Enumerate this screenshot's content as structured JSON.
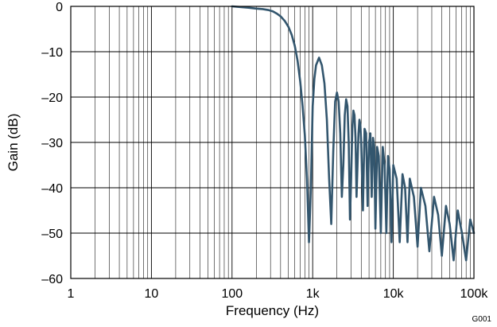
{
  "chart_data": {
    "type": "line",
    "xlabel": "Frequency (Hz)",
    "ylabel": "Gain (dB)",
    "x_scale": "log",
    "xlim": [
      1,
      100000
    ],
    "ylim": [
      -60,
      0
    ],
    "grid": true,
    "x_ticks": [
      {
        "value": 1,
        "label": "1"
      },
      {
        "value": 10,
        "label": "10"
      },
      {
        "value": 100,
        "label": "100"
      },
      {
        "value": 1000,
        "label": "1k"
      },
      {
        "value": 10000,
        "label": "10k"
      },
      {
        "value": 100000,
        "label": "100k"
      }
    ],
    "y_ticks": [
      {
        "value": 0,
        "label": "0"
      },
      {
        "value": -10,
        "label": "–10"
      },
      {
        "value": -20,
        "label": "–20"
      },
      {
        "value": -30,
        "label": "–30"
      },
      {
        "value": -40,
        "label": "–40"
      },
      {
        "value": -50,
        "label": "–50"
      },
      {
        "value": -60,
        "label": "–60"
      }
    ],
    "series_color": "#33566e",
    "series": [
      {
        "x": [
          100,
          160,
          200,
          240,
          280,
          320,
          360,
          400,
          450,
          500,
          550,
          600,
          650,
          700,
          750,
          800,
          850,
          900,
          950,
          1000,
          1050,
          1100,
          1200,
          1300,
          1400,
          1500,
          1600,
          1700,
          1800,
          1900,
          2000,
          2100,
          2200,
          2300,
          2400,
          2500,
          2600,
          2700,
          2800,
          2900,
          3000,
          3100,
          3200,
          3300,
          3400,
          3500,
          3600,
          3700,
          3800,
          3900,
          4000,
          4200,
          4400,
          4600,
          4800,
          5000,
          5200,
          5400,
          5600,
          5800,
          6000,
          6300,
          6600,
          7000,
          7400,
          7800,
          8200,
          8600,
          9000,
          9500,
          10000,
          11000,
          12000,
          13000,
          14000,
          15000,
          16000,
          18000,
          20000,
          22000,
          25000,
          28000,
          32000,
          36000,
          40000,
          45000,
          50000,
          56000,
          63000,
          71000,
          80000,
          90000,
          100000
        ],
        "y": [
          0,
          -0.3,
          -0.5,
          -0.6,
          -0.8,
          -1.1,
          -1.6,
          -2.2,
          -3.2,
          -4.5,
          -6.3,
          -8.7,
          -12,
          -16.5,
          -22,
          -28.5,
          -38,
          -52,
          -40,
          -22,
          -16,
          -13,
          -11.3,
          -13,
          -17,
          -25,
          -38,
          -48,
          -32,
          -21,
          -19,
          -21,
          -28,
          -42,
          -35,
          -24,
          -20.5,
          -22,
          -30,
          -47,
          -38,
          -27,
          -23,
          -24,
          -29,
          -42,
          -35,
          -28,
          -25,
          -26,
          -30,
          -45,
          -27,
          -28,
          -44,
          -30,
          -28,
          -42,
          -29,
          -31,
          -49,
          -31,
          -33,
          -50,
          -31,
          -35,
          -50,
          -33,
          -36,
          -52,
          -35,
          -38,
          -52,
          -37,
          -40,
          -52,
          -38,
          -42,
          -53,
          -40,
          -44,
          -54,
          -42,
          -46,
          -55,
          -44,
          -48,
          -56,
          -45,
          -50,
          -56,
          -47,
          -50
        ]
      }
    ]
  },
  "figure_code": "G001"
}
